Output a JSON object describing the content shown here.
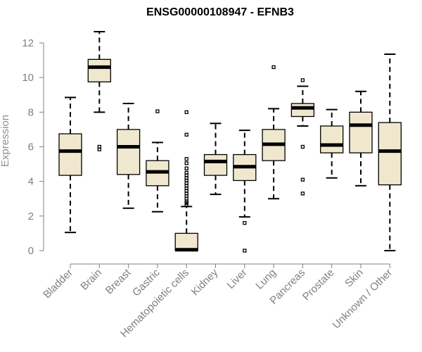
{
  "chart_data": {
    "type": "boxplot",
    "title": "ENSG00000108947 - EFNB3",
    "xlabel": "",
    "ylabel": "Expression",
    "ylim": [
      0,
      12
    ],
    "yticks": [
      0,
      2,
      4,
      6,
      8,
      10,
      12
    ],
    "box_fill": "#efe8cf",
    "categories": [
      "Bladder",
      "Brain",
      "Breast",
      "Gastric",
      "Hematopoietic cells",
      "Kidney",
      "Liver",
      "Lung",
      "Pancreas",
      "Prostate",
      "Skin",
      "Unknown / Other"
    ],
    "boxes": [
      {
        "name": "Bladder",
        "min": 1.05,
        "q1": 4.35,
        "median": 5.75,
        "q3": 6.75,
        "max": 8.85,
        "outliers": []
      },
      {
        "name": "Brain",
        "min": 8.0,
        "q1": 9.75,
        "median": 10.6,
        "q3": 11.05,
        "max": 12.65,
        "outliers": [
          5.85,
          6.0
        ]
      },
      {
        "name": "Breast",
        "min": 2.45,
        "q1": 4.4,
        "median": 6.0,
        "q3": 7.0,
        "max": 8.5,
        "outliers": []
      },
      {
        "name": "Gastric",
        "min": 2.25,
        "q1": 3.75,
        "median": 4.55,
        "q3": 5.2,
        "max": 6.25,
        "outliers": [
          8.05
        ]
      },
      {
        "name": "Hematopoietic cells",
        "min": 0.0,
        "q1": 0.0,
        "median": 0.05,
        "q3": 1.0,
        "max": 2.55,
        "outliers": [
          2.65,
          2.75,
          2.85,
          3.0,
          3.15,
          3.3,
          3.45,
          3.6,
          3.75,
          3.9,
          4.05,
          4.2,
          4.35,
          4.5,
          4.75,
          5.05,
          5.3,
          6.7,
          8.0
        ]
      },
      {
        "name": "Kidney",
        "min": 3.25,
        "q1": 4.35,
        "median": 5.15,
        "q3": 5.55,
        "max": 7.35,
        "outliers": []
      },
      {
        "name": "Liver",
        "min": 1.95,
        "q1": 4.05,
        "median": 4.85,
        "q3": 5.55,
        "max": 6.95,
        "outliers": [
          1.6,
          0.0
        ]
      },
      {
        "name": "Lung",
        "min": 3.0,
        "q1": 5.2,
        "median": 6.15,
        "q3": 7.0,
        "max": 8.2,
        "outliers": [
          10.6
        ]
      },
      {
        "name": "Pancreas",
        "min": 7.2,
        "q1": 7.75,
        "median": 8.25,
        "q3": 8.5,
        "max": 9.5,
        "outliers": [
          9.85,
          6.0,
          4.1,
          3.3
        ]
      },
      {
        "name": "Prostate",
        "min": 4.2,
        "q1": 5.65,
        "median": 6.1,
        "q3": 7.2,
        "max": 8.15,
        "outliers": []
      },
      {
        "name": "Skin",
        "min": 3.75,
        "q1": 5.65,
        "median": 7.25,
        "q3": 8.0,
        "max": 9.2,
        "outliers": []
      },
      {
        "name": "Unknown / Other",
        "min": 0.0,
        "q1": 3.8,
        "median": 5.75,
        "q3": 7.4,
        "max": 11.35,
        "outliers": []
      }
    ]
  }
}
